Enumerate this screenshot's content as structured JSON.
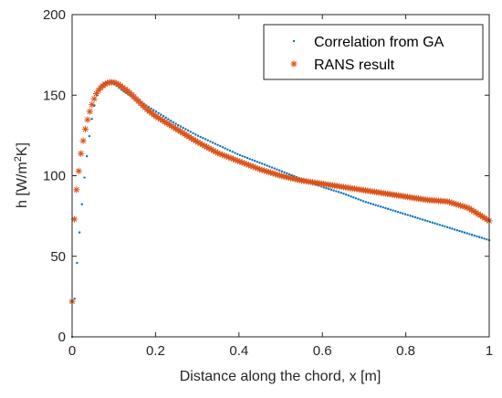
{
  "chart_data": {
    "type": "scatter",
    "xlabel": "Distance along the chord, x [m]",
    "ylabel_main": "h [W/m",
    "ylabel_sup": "2",
    "ylabel_tail": "K]",
    "xlim": [
      0,
      1
    ],
    "ylim": [
      0,
      200
    ],
    "xticks": [
      "0",
      "0.2",
      "0.4",
      "0.6",
      "0.8",
      "1"
    ],
    "yticks": [
      "0",
      "50",
      "100",
      "150",
      "200"
    ],
    "grid": false,
    "legend_position": "top-right",
    "series": [
      {
        "name": "Correlation from GA",
        "marker": "dot",
        "color": "#0072BD",
        "x": [
          0.0,
          0.01,
          0.02,
          0.03,
          0.04,
          0.05,
          0.06,
          0.07,
          0.08,
          0.09,
          0.1,
          0.12,
          0.15,
          0.2,
          0.25,
          0.3,
          0.35,
          0.4,
          0.45,
          0.5,
          0.55,
          0.6,
          0.65,
          0.7,
          0.75,
          0.8,
          0.85,
          0.9,
          0.95,
          1.0
        ],
        "y": [
          0,
          40,
          72,
          100,
          122,
          140,
          151,
          156,
          158,
          158,
          157,
          153,
          148,
          140,
          132,
          125,
          119,
          113,
          108,
          103,
          98,
          93,
          89,
          84,
          80,
          76,
          72,
          68,
          64,
          60
        ]
      },
      {
        "name": "RANS result",
        "marker": "asterisk",
        "color": "#D95319",
        "x": [
          0.0,
          0.005,
          0.01,
          0.02,
          0.03,
          0.04,
          0.05,
          0.06,
          0.07,
          0.08,
          0.09,
          0.1,
          0.11,
          0.12,
          0.14,
          0.16,
          0.18,
          0.2,
          0.25,
          0.3,
          0.35,
          0.4,
          0.45,
          0.5,
          0.55,
          0.6,
          0.65,
          0.7,
          0.75,
          0.8,
          0.85,
          0.9,
          0.95,
          1.0
        ],
        "y": [
          22,
          72,
          90,
          112,
          127,
          138,
          146,
          152,
          155,
          157,
          158,
          158,
          157,
          155,
          151,
          146,
          141,
          137,
          129,
          121,
          114,
          109,
          104,
          100,
          97,
          95,
          93,
          91,
          89,
          87,
          85,
          84,
          80,
          72
        ]
      }
    ]
  }
}
